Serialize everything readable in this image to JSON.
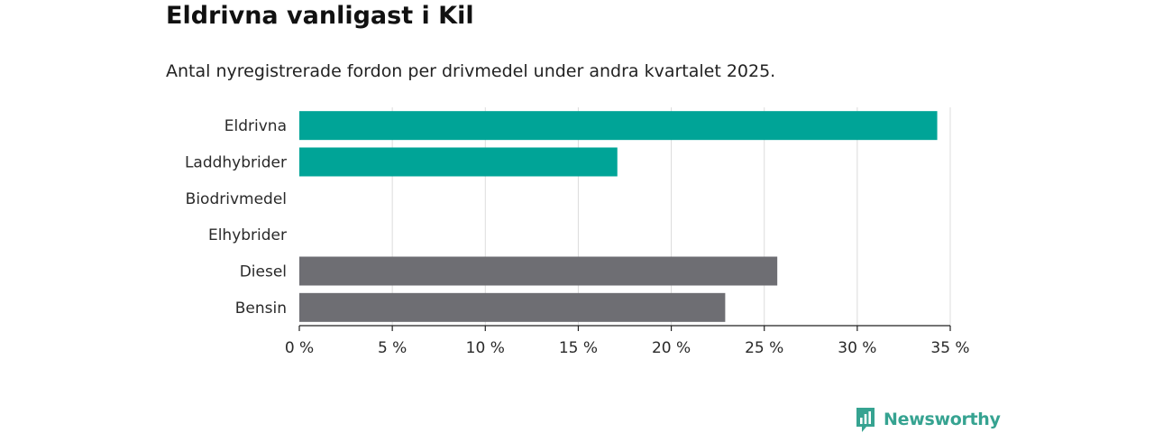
{
  "header": {
    "title": "Eldrivna vanligast i Kil",
    "subtitle": "Antal nyregistrerade fordon per drivmedel under andra kvartalet 2025."
  },
  "brand": {
    "name": "Newsworthy",
    "icon": "bar-chart-logo-icon",
    "color": "#36a391"
  },
  "chart_data": {
    "type": "bar",
    "orientation": "horizontal",
    "categories": [
      "Eldrivna",
      "Laddhybrider",
      "Biodrivmedel",
      "Elhybrider",
      "Diesel",
      "Bensin"
    ],
    "values": [
      34.3,
      17.1,
      0,
      0,
      25.7,
      22.9
    ],
    "colors": [
      "#00a497",
      "#00a497",
      "#00a497",
      "#00a497",
      "#6e6e73",
      "#6e6e73"
    ],
    "xlim": [
      0,
      35
    ],
    "xticks": [
      0,
      5,
      10,
      15,
      20,
      25,
      30,
      35
    ],
    "xtick_labels": [
      "0 %",
      "5 %",
      "10 %",
      "15 %",
      "20 %",
      "25 %",
      "30 %",
      "35 %"
    ],
    "grid": true,
    "xlabel": "",
    "ylabel": ""
  }
}
